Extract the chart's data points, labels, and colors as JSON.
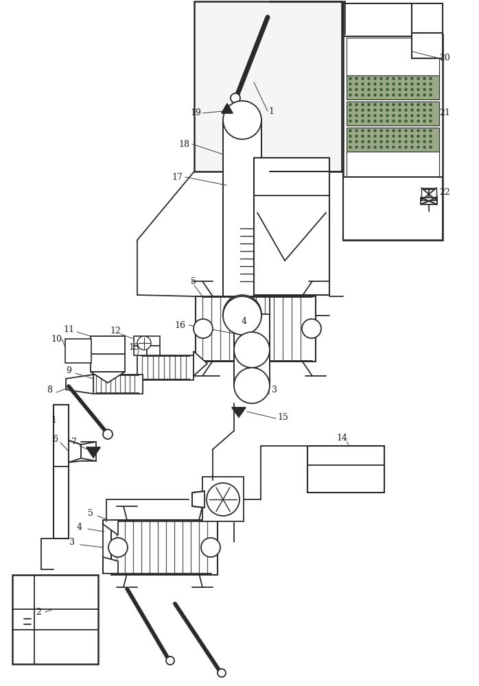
{
  "bg_color": "#ffffff",
  "line_color": "#2a2a2a",
  "label_color": "#1a1a1a",
  "fig_width": 6.98,
  "fig_height": 10.0,
  "dpi": 100
}
